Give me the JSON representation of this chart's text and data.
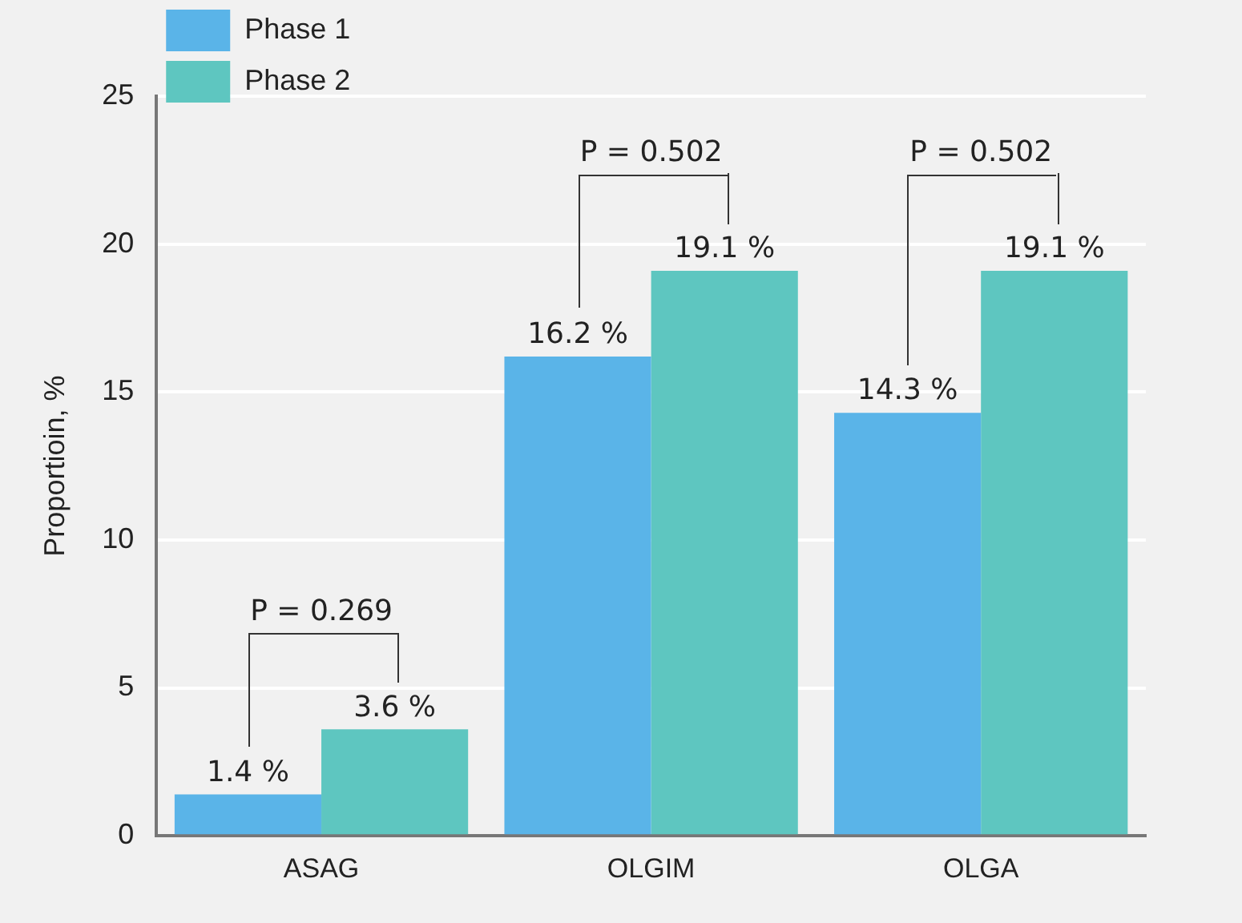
{
  "chart_data": {
    "type": "bar",
    "ylabel": "Proportioin, %",
    "categories": [
      "ASAG",
      "OLGIM",
      "OLGA"
    ],
    "series": [
      {
        "name": "Phase 1",
        "color": "#5ab4e8",
        "values": [
          1.4,
          16.2,
          14.3
        ],
        "value_labels": [
          "1.4 %",
          "16.2 %",
          "14.3 %"
        ]
      },
      {
        "name": "Phase 2",
        "color": "#5ec6c0",
        "values": [
          3.6,
          19.1,
          19.1
        ],
        "value_labels": [
          "3.6 %",
          "19.1 %",
          "19.1 %"
        ]
      }
    ],
    "ylim": [
      0,
      25
    ],
    "yticks": [
      0,
      5,
      10,
      15,
      20,
      25
    ],
    "grid": "y",
    "legend": "top left",
    "annotations": [
      "P = 0.269",
      "P = 0.502",
      "P = 0.502"
    ]
  }
}
